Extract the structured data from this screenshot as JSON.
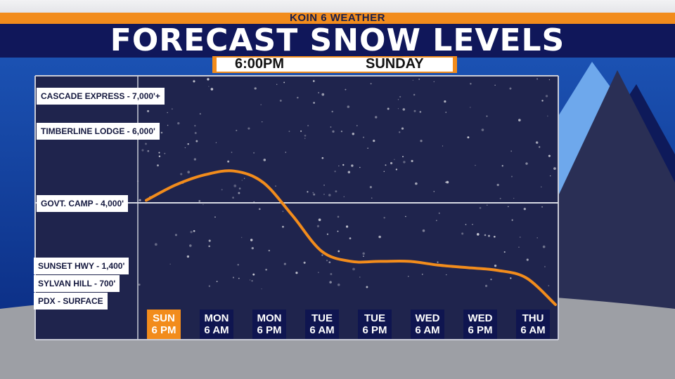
{
  "header": {
    "station": "KOIN 6 WEATHER",
    "title": "FORECAST SNOW LEVELS",
    "time": "6:00PM",
    "day": "SUNDAY"
  },
  "colors": {
    "orange": "#f28c1c",
    "navy": "#10175a",
    "plot_bg": "#1f244d",
    "line": "#f28c1c"
  },
  "chart_data": {
    "type": "line",
    "title": "FORECAST SNOW LEVELS",
    "subtitle": "6:00PM SUNDAY",
    "y_reference_labels": [
      {
        "label": "CASCADE EXPRESS - 7,000'+",
        "elevation_ft": 7000
      },
      {
        "label": "TIMBERLINE LODGE - 6,000'",
        "elevation_ft": 6000
      },
      {
        "label": "GOVT. CAMP - 4,000'",
        "elevation_ft": 4000
      },
      {
        "label": "SUNSET HWY - 1,400'",
        "elevation_ft": 1400
      },
      {
        "label": "SYLVAN HILL - 700'",
        "elevation_ft": 700
      },
      {
        "label": "PDX - SURFACE",
        "elevation_ft": 0
      }
    ],
    "x_ticks": [
      {
        "line1": "SUN",
        "line2": "6 PM",
        "active": true
      },
      {
        "line1": "MON",
        "line2": "6 AM",
        "active": false
      },
      {
        "line1": "MON",
        "line2": "6 PM",
        "active": false
      },
      {
        "line1": "TUE",
        "line2": "6 AM",
        "active": false
      },
      {
        "line1": "TUE",
        "line2": "6 PM",
        "active": false
      },
      {
        "line1": "WED",
        "line2": "6 AM",
        "active": false
      },
      {
        "line1": "WED",
        "line2": "6 PM",
        "active": false
      },
      {
        "line1": "THU",
        "line2": "6 AM",
        "active": false
      }
    ],
    "series": [
      {
        "x": [
          0,
          0.5,
          1,
          1.5,
          2,
          2.5,
          3,
          3.5,
          4,
          4.5,
          5,
          5.5,
          6,
          6.5,
          7
        ],
        "y": [
          4100,
          4700,
          5100,
          5250,
          4800,
          3500,
          2100,
          1700,
          1700,
          1700,
          1550,
          1450,
          1350,
          1050,
          0
        ]
      }
    ],
    "ylim": [
      0,
      8000
    ],
    "reference_lines": [
      4000
    ],
    "grid": false,
    "legend": "none"
  }
}
